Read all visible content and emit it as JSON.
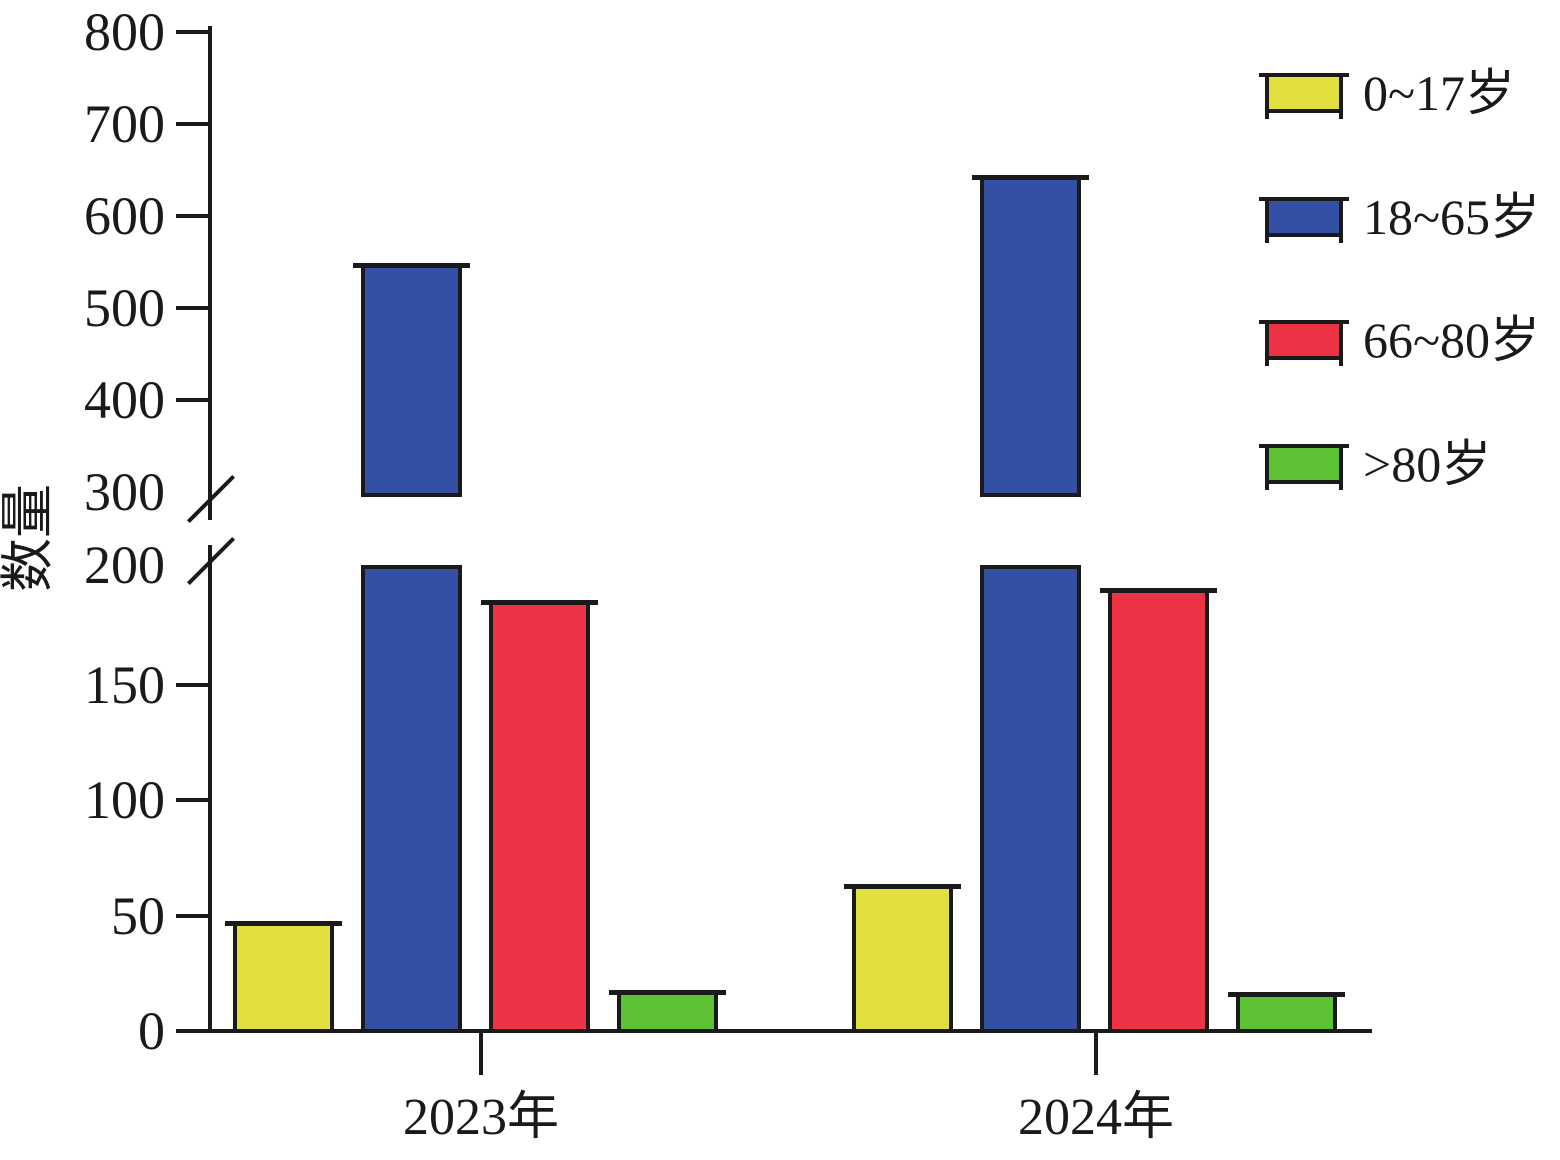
{
  "chart_data": {
    "type": "bar",
    "title": "",
    "ylabel": "数量",
    "xlabel": "",
    "categories": [
      "2023年",
      "2024年"
    ],
    "series": [
      {
        "name": "0~17岁",
        "color": "#e2e03f",
        "values": [
          46,
          62
        ]
      },
      {
        "name": "18~65岁",
        "color": "#3450a4",
        "values": [
          545,
          640
        ]
      },
      {
        "name": "66~80岁",
        "color": "#ee3245",
        "values": [
          185,
          190
        ]
      },
      {
        "name": ">80岁",
        "color": "#5cc234",
        "values": [
          16,
          15
        ]
      }
    ],
    "axis": {
      "broken_axis": true,
      "lower_range": [
        0,
        200
      ],
      "upper_range": [
        300,
        800
      ],
      "lower_ticks": [
        0,
        50,
        100,
        150,
        200
      ],
      "upper_ticks": [
        300,
        400,
        500,
        600,
        700,
        800
      ]
    },
    "line_color": "#1a1a1a",
    "legend_position": "upper-right",
    "grid": false
  }
}
